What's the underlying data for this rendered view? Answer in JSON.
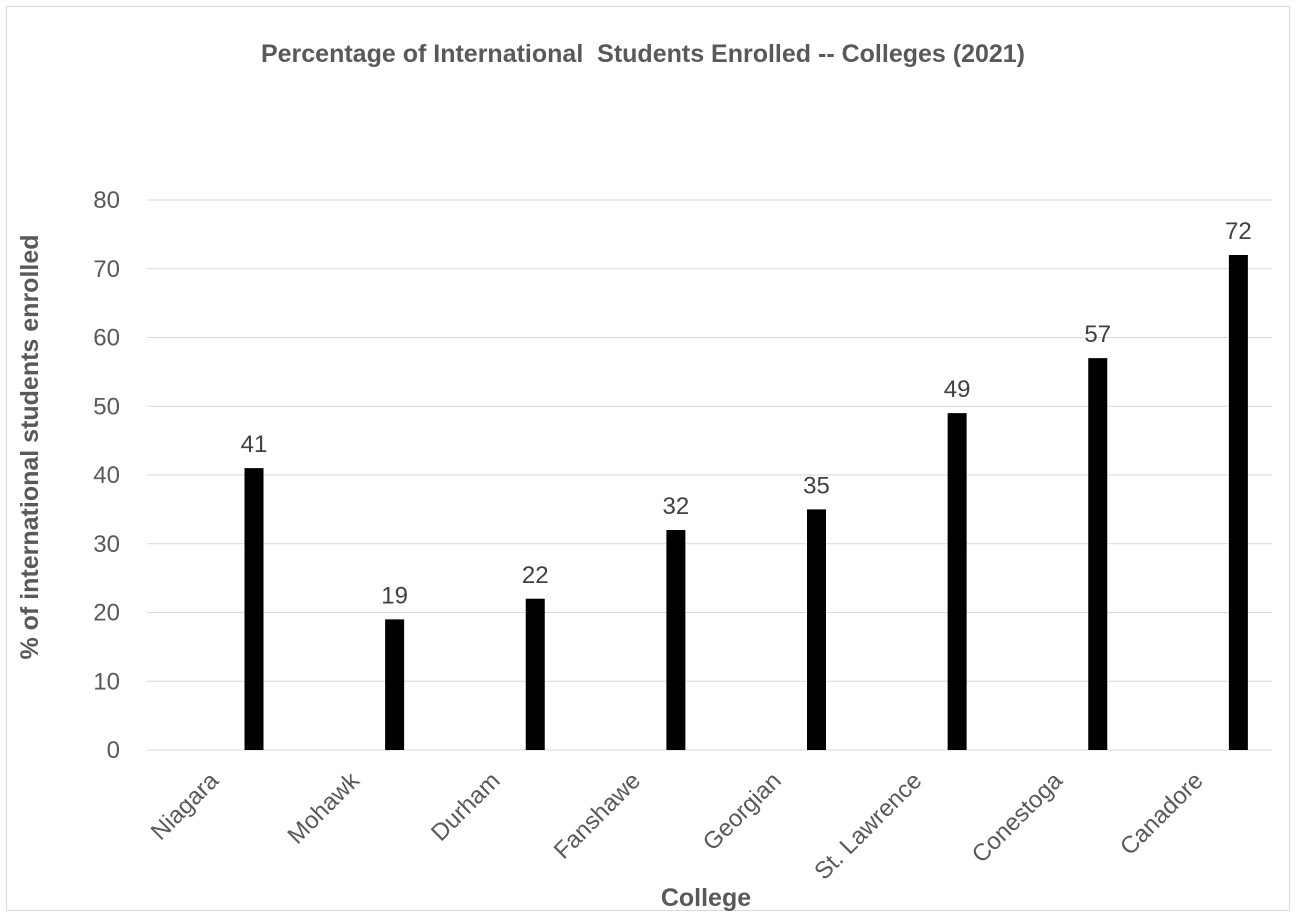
{
  "chart_data": {
    "type": "bar",
    "title": "Percentage of International  Students Enrolled -- Colleges (2021)",
    "xlabel": "College",
    "ylabel": "% of international students enrolled",
    "categories": [
      "Niagara",
      "Mohawk",
      "Durham",
      "Fanshawe",
      "Georgian",
      "St. Lawrence",
      "Conestoga",
      "Canadore"
    ],
    "values": [
      41,
      19,
      22,
      32,
      35,
      49,
      57,
      72
    ],
    "ylim": [
      0,
      80
    ],
    "yticks": [
      0,
      10,
      20,
      30,
      40,
      50,
      60,
      70,
      80
    ],
    "grid": true,
    "legend": "none",
    "data_labels": true,
    "colors": {
      "bar": "#000000",
      "grid": "#d9d9d9",
      "text": "#595959",
      "data_label": "#404040"
    }
  }
}
